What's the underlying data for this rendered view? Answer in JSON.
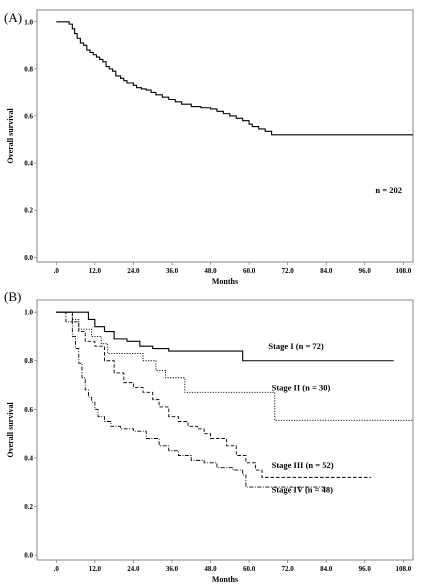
{
  "chart_data": [
    {
      "type": "line",
      "step": true,
      "panel_label": "(A)",
      "title": "",
      "xlabel": "Months",
      "ylabel": "Overall survival",
      "xlim": [
        -6,
        111
      ],
      "ylim": [
        -0.02,
        1.05
      ],
      "x_ticks": [
        0,
        12,
        24,
        36,
        48,
        60,
        72,
        84,
        96,
        108
      ],
      "x_tick_labels": [
        ".0",
        "12.0",
        "24.0",
        "36.0",
        "48.0",
        "60.0",
        "72.0",
        "84.0",
        "96.0",
        "108.0"
      ],
      "y_ticks": [
        0,
        0.2,
        0.4,
        0.6,
        0.8,
        1.0
      ],
      "y_tick_labels": [
        "0.0",
        "0.2",
        "0.4",
        "0.6",
        "0.8",
        "1.0"
      ],
      "grid": false,
      "annotation": "n = 202",
      "series": [
        {
          "dash": "solid",
          "x": [
            0,
            4,
            5,
            5.7,
            6.5,
            7.5,
            8.5,
            9.5,
            10.5,
            11.5,
            12.5,
            13.5,
            14.5,
            15.5,
            16.5,
            17.5,
            18.5,
            20,
            21,
            22,
            24,
            25,
            26.5,
            28,
            29.5,
            31,
            33,
            35,
            37,
            39,
            42,
            45,
            48,
            50,
            52,
            54,
            56,
            58,
            60,
            61,
            63,
            65,
            67,
            111
          ],
          "y": [
            1.0,
            0.99,
            0.97,
            0.95,
            0.93,
            0.91,
            0.9,
            0.88,
            0.87,
            0.86,
            0.85,
            0.84,
            0.83,
            0.81,
            0.8,
            0.79,
            0.77,
            0.76,
            0.75,
            0.74,
            0.73,
            0.72,
            0.715,
            0.71,
            0.7,
            0.69,
            0.68,
            0.67,
            0.66,
            0.65,
            0.64,
            0.635,
            0.63,
            0.62,
            0.61,
            0.6,
            0.59,
            0.58,
            0.565,
            0.555,
            0.545,
            0.535,
            0.52,
            0.52
          ]
        }
      ]
    },
    {
      "type": "line",
      "step": true,
      "panel_label": "(B)",
      "title": "",
      "xlabel": "Months",
      "ylabel": "Overall survival",
      "xlim": [
        -6,
        111
      ],
      "ylim": [
        -0.02,
        1.05
      ],
      "x_ticks": [
        0,
        12,
        24,
        36,
        48,
        60,
        72,
        84,
        96,
        108
      ],
      "x_tick_labels": [
        ".0",
        "12.0",
        "24.0",
        "36.0",
        "48.0",
        "60.0",
        "72.0",
        "84.0",
        "96.0",
        "108.0"
      ],
      "y_ticks": [
        0,
        0.2,
        0.4,
        0.6,
        0.8,
        1.0
      ],
      "y_tick_labels": [
        "0.0",
        "0.2",
        "0.4",
        "0.6",
        "0.8",
        "1.0"
      ],
      "grid": false,
      "series": [
        {
          "name": "Stage I (n = 72)",
          "dash": "solid",
          "label_at": [
            66,
            0.86
          ],
          "x": [
            0,
            10,
            12,
            15,
            18,
            22,
            26,
            30,
            35,
            58,
            105
          ],
          "y": [
            1.0,
            0.97,
            0.94,
            0.92,
            0.89,
            0.88,
            0.86,
            0.85,
            0.84,
            0.8,
            0.8
          ]
        },
        {
          "name": "Stage II (n = 30)",
          "dash": "dotted",
          "label_at": [
            67,
            0.69
          ],
          "x": [
            0,
            5,
            7,
            11,
            14,
            16,
            24,
            27,
            31,
            34,
            40,
            66,
            68,
            111
          ],
          "y": [
            1.0,
            0.97,
            0.93,
            0.9,
            0.87,
            0.83,
            0.83,
            0.8,
            0.76,
            0.73,
            0.67,
            0.67,
            0.555,
            0.555
          ]
        },
        {
          "name": "Stage III (n = 52)",
          "dash": "dashed",
          "label_at": [
            67,
            0.37
          ],
          "x": [
            0,
            5,
            7,
            9,
            12,
            15,
            18,
            21,
            24,
            27,
            30,
            32,
            35,
            38,
            41,
            44,
            46,
            48,
            53,
            56,
            59,
            62,
            64,
            98
          ],
          "y": [
            1.0,
            0.96,
            0.92,
            0.88,
            0.86,
            0.8,
            0.75,
            0.71,
            0.69,
            0.67,
            0.64,
            0.61,
            0.57,
            0.55,
            0.53,
            0.52,
            0.5,
            0.48,
            0.45,
            0.41,
            0.38,
            0.35,
            0.32,
            0.32
          ]
        },
        {
          "name": "Stage IV (n = 48)",
          "dash": "dashdot",
          "label_at": [
            67,
            0.27
          ],
          "x": [
            0,
            3,
            5,
            6,
            7,
            8,
            9,
            10,
            11,
            12,
            13,
            15,
            17,
            20,
            24,
            28,
            32,
            35,
            38,
            42,
            46,
            50,
            55,
            58,
            59,
            84
          ],
          "y": [
            1.0,
            0.96,
            0.9,
            0.85,
            0.79,
            0.73,
            0.68,
            0.65,
            0.63,
            0.6,
            0.57,
            0.55,
            0.53,
            0.52,
            0.51,
            0.48,
            0.45,
            0.43,
            0.41,
            0.39,
            0.38,
            0.36,
            0.35,
            0.33,
            0.28,
            0.28
          ]
        }
      ]
    }
  ]
}
